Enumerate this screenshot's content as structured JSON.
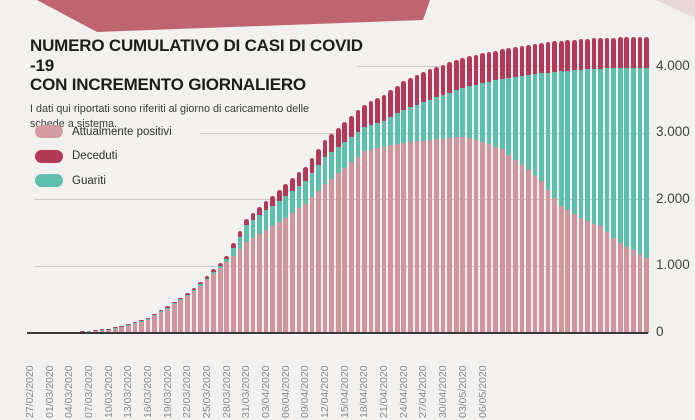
{
  "header": {
    "title_line1": "NUMERO CUMULATIVO DI CASI DI COVID -19",
    "title_line2": "CON INCREMENTO GIORNALIERO",
    "subtitle_line1": "I dati qui riportati sono riferiti al giorno di caricamento delle",
    "subtitle_line2": "schede a sistema."
  },
  "legend": [
    {
      "label": "Attualmente positivi",
      "color": "#d49ba2"
    },
    {
      "label": "Deceduti",
      "color": "#b23a58"
    },
    {
      "label": "Guariti",
      "color": "#5fbfae"
    }
  ],
  "colors": {
    "background": "#f2f1ef",
    "ribbon": "#bf6570",
    "ribbon_light": "#e9d6d8",
    "positivi": "#d0969e",
    "deceduti": "#b23a58",
    "guariti": "#5fbfae",
    "gridline": "#c9c8c6",
    "axis": "#3b3a38"
  },
  "chart_data": {
    "type": "bar",
    "stacked": true,
    "title": "NUMERO CUMULATIVO DI CASI DI COVID -19 CON INCREMENTO GIORNALIERO",
    "y_axis_side": "right",
    "ylim": [
      0,
      4500
    ],
    "grid": true,
    "y_ticks": [
      "4.000",
      "3.000",
      "2.000",
      "1.000",
      "0"
    ],
    "y_tick_values": [
      4000,
      3000,
      2000,
      1000,
      0
    ],
    "x_label_every": 3,
    "x_labels": [
      "27/02/2020",
      "01/03/2020",
      "04/03/2020",
      "07/03/2020",
      "10/03/2020",
      "13/03/2020",
      "16/03/2020",
      "19/03/2020",
      "22/03/2020",
      "25/03/2020",
      "28/03/2020",
      "31/03/2020",
      "03/04/2020",
      "06/04/2020",
      "09/04/2020",
      "12/04/2020",
      "15/04/2020",
      "18/04/2020",
      "21/04/2020",
      "24/04/2020",
      "27/04/2020",
      "30/04/2020",
      "03/05/2020",
      "06/05/2020"
    ],
    "series": [
      {
        "name": "Attualmente positivi",
        "color": "#d0969e",
        "values": [
          2,
          3,
          3,
          4,
          6,
          8,
          10,
          16,
          21,
          27,
          38,
          49,
          60,
          79,
          99,
          118,
          145,
          173,
          200,
          257,
          313,
          370,
          430,
          490,
          550,
          630,
          710,
          790,
          880,
          970,
          1060,
          1160,
          1260,
          1360,
          1423,
          1487,
          1550,
          1610,
          1670,
          1730,
          1800,
          1870,
          1940,
          2037,
          2133,
          2230,
          2313,
          2397,
          2480,
          2563,
          2647,
          2730,
          2753,
          2777,
          2800,
          2817,
          2833,
          2850,
          2863,
          2877,
          2890,
          2900,
          2910,
          2920,
          2930,
          2940,
          2950,
          2923,
          2897,
          2870,
          2833,
          2797,
          2760,
          2680,
          2600,
          2520,
          2440,
          2360,
          2280,
          2153,
          2027,
          1900,
          1840,
          1780,
          1720,
          1680,
          1640,
          1600,
          1517,
          1433,
          1350,
          1295,
          1240,
          1185,
          1130
        ]
      },
      {
        "name": "Guariti",
        "color": "#5fbfae",
        "values": [
          0,
          0,
          0,
          1,
          1,
          1,
          1,
          1,
          1,
          2,
          2,
          2,
          2,
          3,
          3,
          4,
          5,
          7,
          8,
          9,
          11,
          12,
          14,
          16,
          18,
          21,
          25,
          28,
          34,
          39,
          45,
          115,
          185,
          255,
          267,
          278,
          290,
          300,
          310,
          320,
          327,
          333,
          340,
          363,
          387,
          410,
          403,
          397,
          390,
          380,
          370,
          360,
          370,
          380,
          390,
          427,
          463,
          500,
          527,
          553,
          580,
          605,
          630,
          655,
          680,
          705,
          730,
          782,
          833,
          885,
          942,
          998,
          1055,
          1150,
          1245,
          1340,
          1433,
          1527,
          1620,
          1758,
          1897,
          2035,
          2101,
          2166,
          2232,
          2278,
          2324,
          2370,
          2455,
          2540,
          2625,
          2681,
          2738,
          2794,
          2850
        ]
      },
      {
        "name": "Deceduti",
        "color": "#b23a58",
        "values": [
          0,
          0,
          0,
          0,
          0,
          0,
          0,
          0,
          1,
          1,
          2,
          2,
          3,
          5,
          6,
          8,
          10,
          12,
          14,
          17,
          19,
          22,
          24,
          26,
          28,
          31,
          35,
          38,
          44,
          49,
          55,
          70,
          85,
          100,
          113,
          127,
          140,
          153,
          167,
          180,
          193,
          207,
          220,
          233,
          247,
          260,
          273,
          287,
          300,
          313,
          327,
          340,
          357,
          373,
          390,
          403,
          417,
          430,
          437,
          443,
          450,
          452,
          453,
          455,
          453,
          452,
          450,
          448,
          447,
          445,
          445,
          445,
          445,
          447,
          448,
          450,
          450,
          450,
          450,
          452,
          453,
          455,
          456,
          457,
          458,
          459,
          459,
          460,
          462,
          463,
          465,
          466,
          468,
          469,
          470
        ]
      }
    ]
  }
}
